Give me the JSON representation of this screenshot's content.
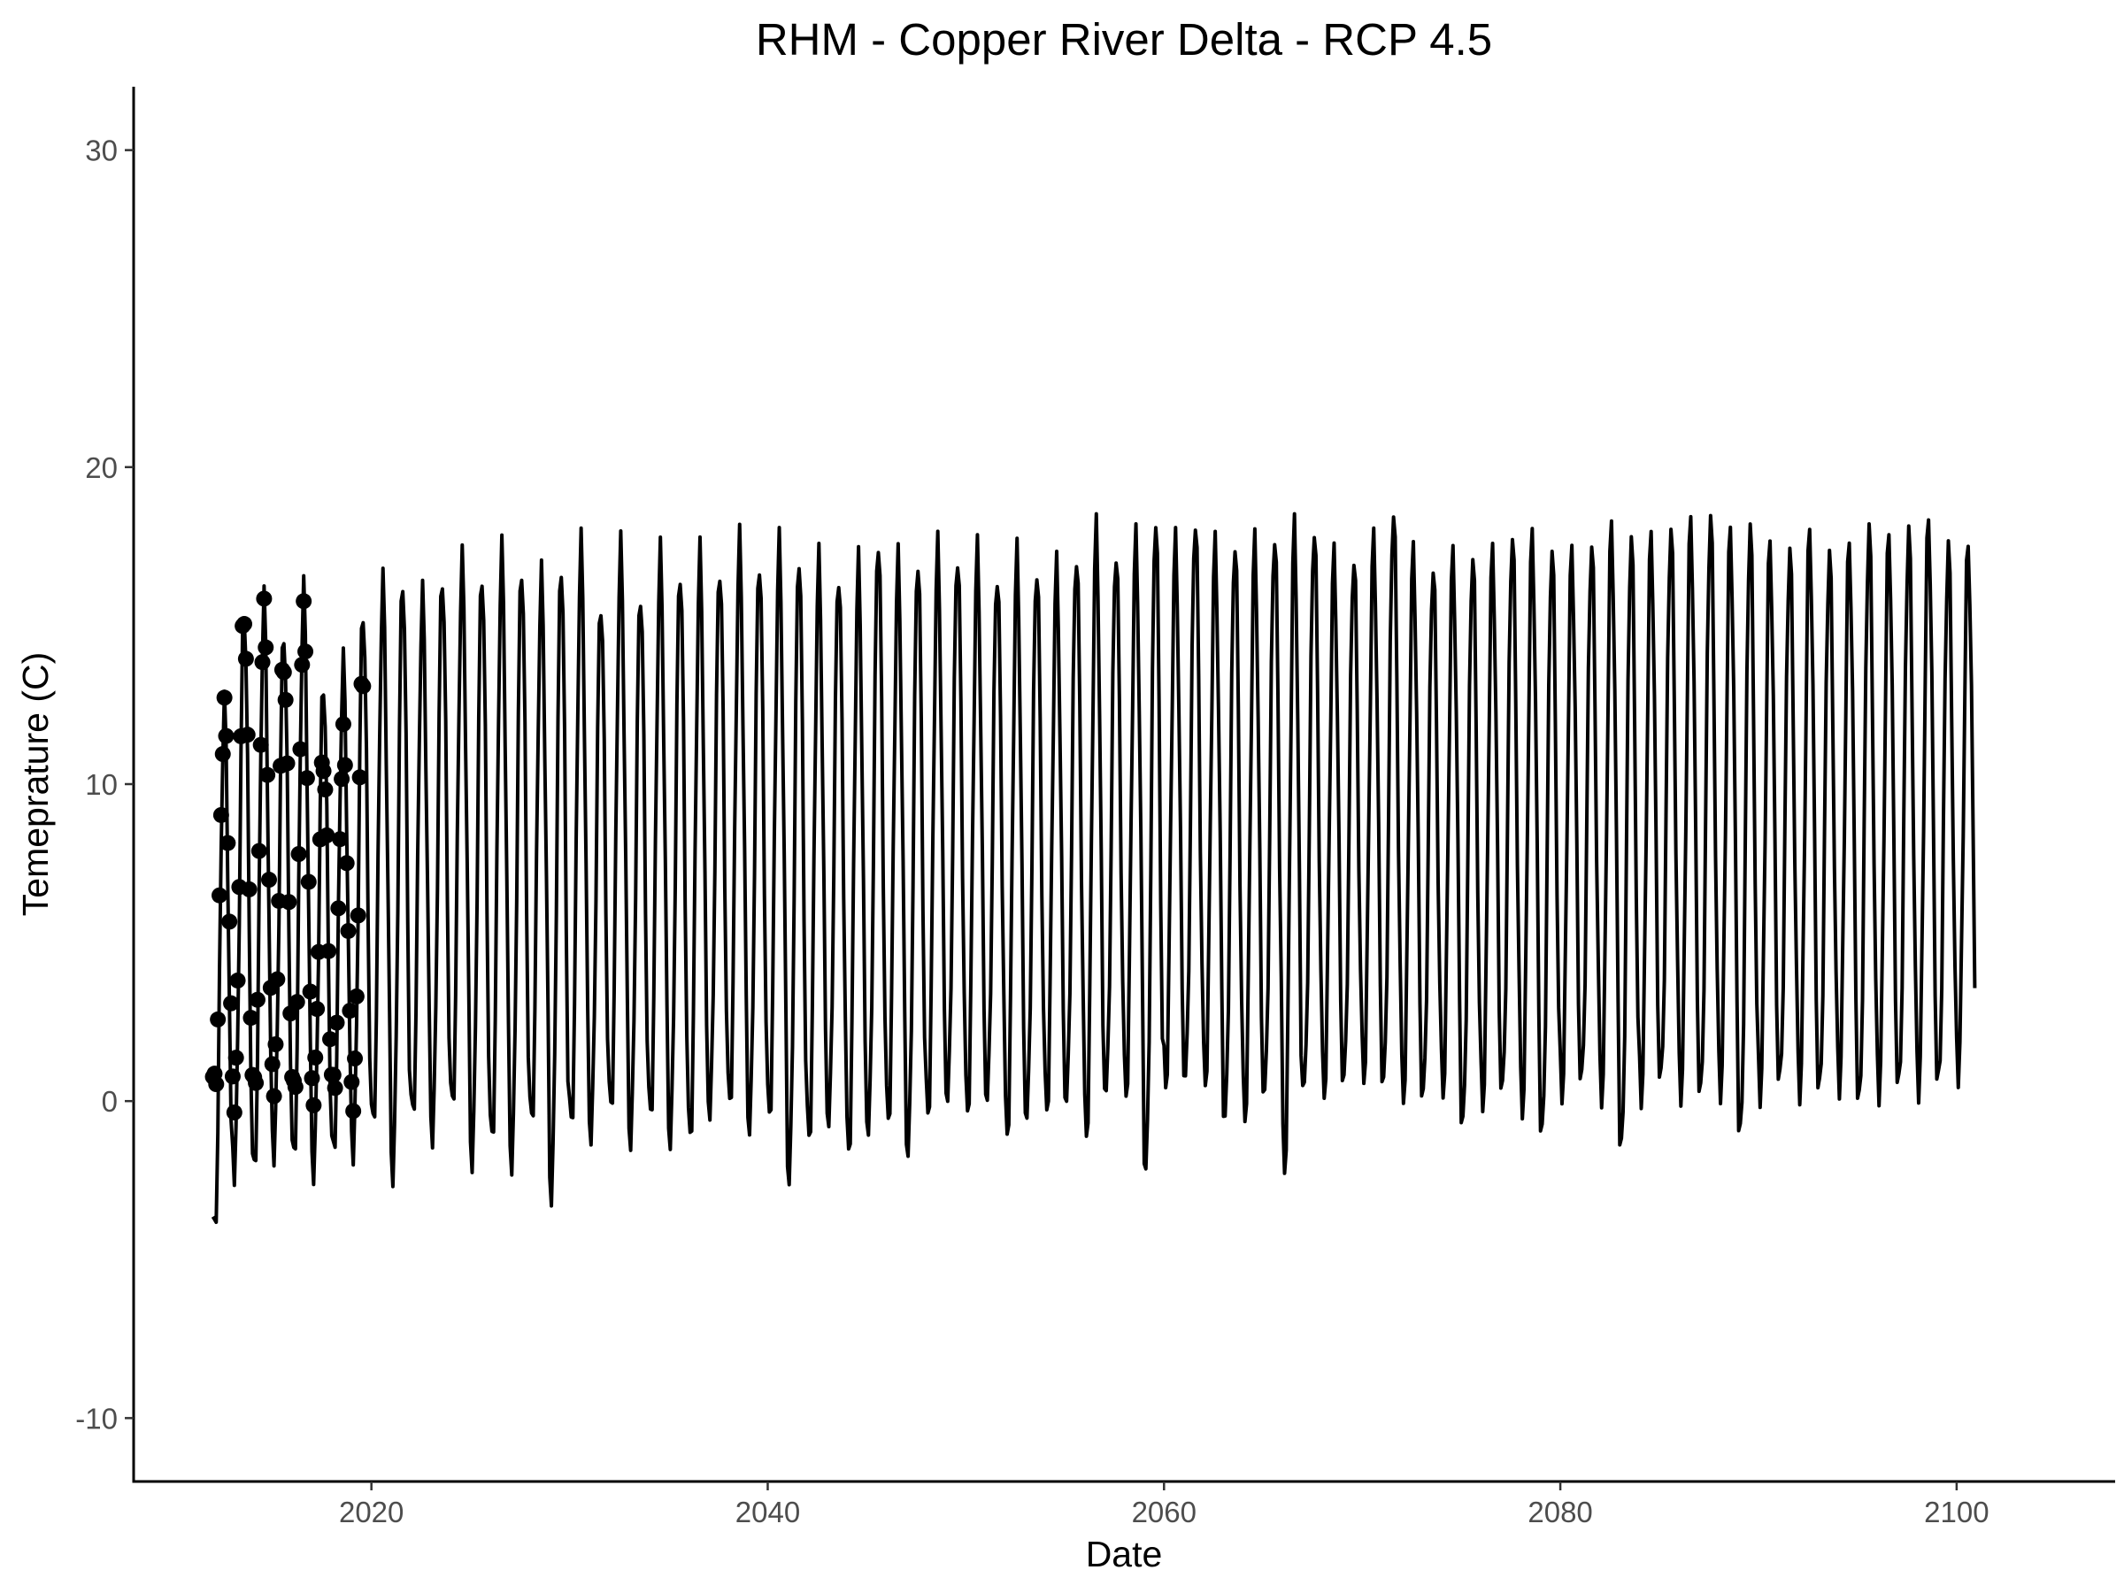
{
  "chart_data": {
    "type": "line",
    "title": "RHM - Copper River Delta - RCP 4.5",
    "xlabel": "Date",
    "ylabel": "Temeprature (C)",
    "xlim": [
      2008,
      2108
    ],
    "ylim": [
      -12,
      32
    ],
    "x_ticks": [
      2020,
      2040,
      2060,
      2080,
      2100
    ],
    "y_ticks": [
      -10,
      0,
      10,
      20,
      30
    ],
    "x_tick_labels": [
      "2020",
      "2040",
      "2060",
      "2080",
      "2100"
    ],
    "y_tick_labels": [
      "-10",
      "0",
      "10",
      "20",
      "30"
    ],
    "grid": false,
    "legend": "none",
    "line_color": "#000000",
    "series": [
      {
        "style": "line",
        "x_start": 2012.0,
        "x_end": 2101.0,
        "points_per_year": 12,
        "annual_summer_max": [
          12.5,
          15.6,
          15.8,
          14.9,
          16.1,
          13.3,
          13.8,
          15.6,
          16.3,
          16.6,
          15.9,
          16.7,
          17.0,
          16.8,
          17.3,
          17.0,
          16.5,
          17.1,
          17.5,
          15.9,
          17.4,
          16.2,
          17.2,
          16.9,
          17.2,
          17.0,
          17.6,
          17.2,
          17.5,
          17.4,
          17.0,
          16.8,
          16.9,
          17.9,
          17.0,
          17.3,
          17.4,
          17.4,
          17.3,
          16.8,
          17.2,
          17.0,
          16.8,
          17.4,
          18.0,
          17.5,
          17.7,
          18.6,
          17.6,
          18.5,
          17.5,
          17.8,
          17.6,
          18.0,
          18.1,
          18.2,
          17.2,
          17.3,
          17.7,
          18.8,
          17.3,
          17.0,
          17.2,
          17.4,
          17.3,
          18.0,
          17.8,
          17.6,
          17.3,
          17.7,
          18.1,
          18.0,
          17.8,
          18.2,
          18.3,
          18.6,
          18.0,
          18.3,
          17.6,
          17.5,
          18.0,
          17.4,
          17.6,
          18.2,
          17.9,
          18.1,
          18.4,
          17.6,
          17.6
        ],
        "annual_winter_min": [
          -4.3,
          -2.1,
          -2.4,
          -1.5,
          -2.0,
          -2.1,
          -1.8,
          -1.5,
          -0.9,
          -2.2,
          -0.6,
          -1.0,
          -0.3,
          -1.8,
          -1.4,
          -1.9,
          -0.8,
          -2.9,
          -0.9,
          -1.0,
          -0.4,
          -1.2,
          -0.6,
          -1.2,
          -1.3,
          -0.3,
          -0.2,
          -0.8,
          -0.6,
          -2.4,
          -1.3,
          -0.6,
          -1.7,
          -0.9,
          -0.7,
          -1.6,
          -0.5,
          0.1,
          -0.4,
          0.1,
          -1.1,
          -0.5,
          -0.3,
          0.0,
          -1.1,
          0.3,
          0.2,
          -2.2,
          0.5,
          0.7,
          0.6,
          -0.6,
          -0.5,
          0.2,
          -2.1,
          0.4,
          0.3,
          0.6,
          0.8,
          0.5,
          0.2,
          0.1,
          0.4,
          -0.8,
          0.0,
          0.3,
          -0.2,
          -1.1,
          0.3,
          0.6,
          0.2,
          -1.6,
          0.2,
          0.6,
          0.3,
          0.1,
          0.4,
          -1.2,
          0.3,
          0.5,
          0.4,
          0.2,
          0.6,
          -0.2,
          0.4,
          0.3,
          0.5,
          0.4,
          1.0
        ]
      },
      {
        "style": "points",
        "x_start": 2012.0,
        "x_end": 2019.6,
        "points_per_year": 12,
        "annual_summer_max": [
          12.3,
          15.5,
          15.4,
          14.0,
          15.3,
          10.9,
          11.4,
          13.6
        ],
        "annual_winter_min": [
          0.3,
          0.2,
          0.2,
          0.7,
          0.1,
          0.4,
          0.3,
          0.2
        ]
      }
    ]
  }
}
